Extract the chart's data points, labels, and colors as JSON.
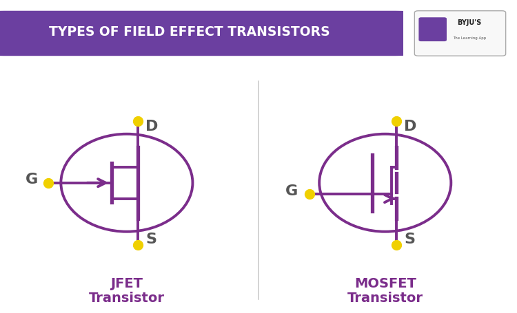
{
  "title": "TYPES OF FIELD EFFECT TRANSISTORS",
  "title_bg": "#6b3fa0",
  "title_color": "#ffffff",
  "symbol_color": "#7b2d8b",
  "dot_color": "#f0d000",
  "label_color": "#555555",
  "bg_color": "#ffffff",
  "jfet_label1": "JFET",
  "jfet_label2": "Transistor",
  "mosfet_label1": "MOSFET",
  "mosfet_label2": "Transistor",
  "divider_color": "#cccccc"
}
